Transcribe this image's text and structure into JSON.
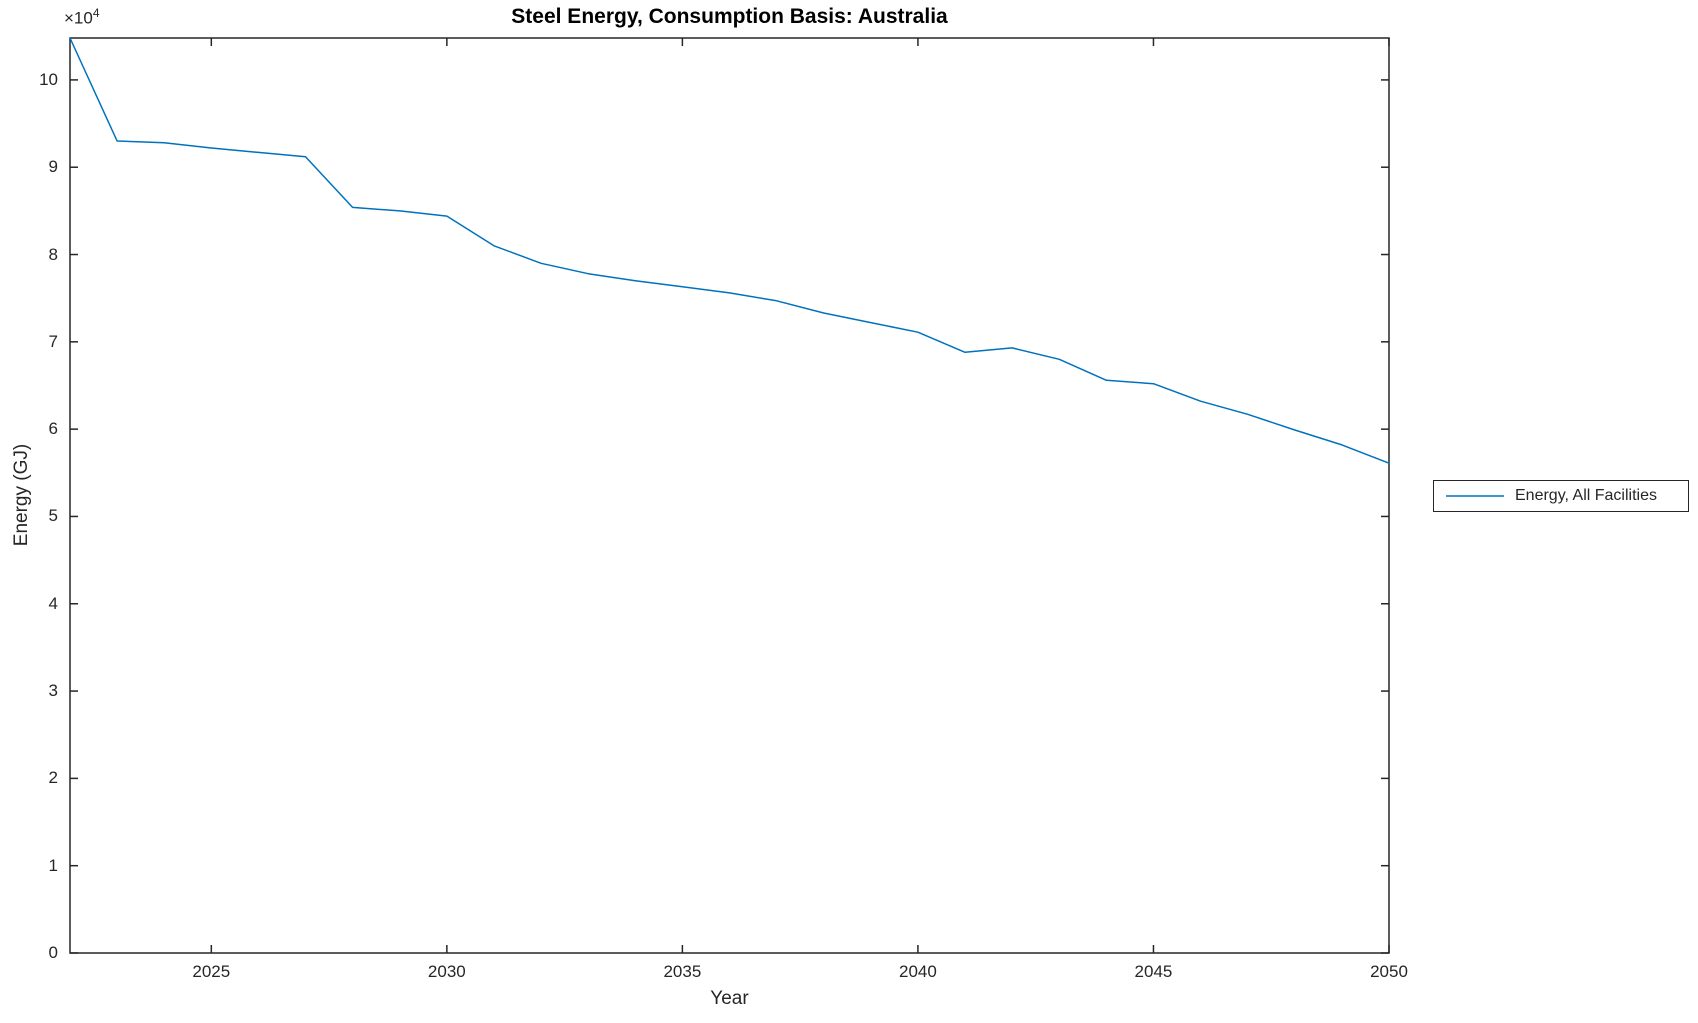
{
  "figure": {
    "background": "#ffffff"
  },
  "chart_data": {
    "type": "line",
    "title": "Steel Energy, Consumption Basis: Australia",
    "xlabel": "Year",
    "ylabel": "Energy (GJ)",
    "y_multiplier_label": "×10",
    "y_multiplier_exponent": "4",
    "y_multiplier_value": 10000,
    "x": [
      2022,
      2023,
      2024,
      2025,
      2026,
      2027,
      2028,
      2029,
      2030,
      2031,
      2032,
      2033,
      2034,
      2035,
      2036,
      2037,
      2038,
      2039,
      2040,
      2041,
      2042,
      2043,
      2044,
      2045,
      2046,
      2047,
      2048,
      2049,
      2050
    ],
    "series": [
      {
        "name": "Energy, All Facilities",
        "color": "#0072BD",
        "values_x1e4_GJ": [
          10.48,
          9.3,
          9.28,
          9.22,
          9.17,
          9.12,
          8.54,
          8.5,
          8.44,
          8.1,
          7.9,
          7.78,
          7.7,
          7.63,
          7.56,
          7.47,
          7.33,
          7.22,
          7.11,
          6.88,
          6.93,
          6.8,
          6.56,
          6.52,
          6.32,
          6.17,
          5.99,
          5.82,
          5.61
        ]
      }
    ],
    "xlim": [
      2022,
      2050
    ],
    "ylim": [
      0,
      10.48
    ],
    "xticks": [
      2025,
      2030,
      2035,
      2040,
      2045,
      2050
    ],
    "yticks": [
      0,
      1,
      2,
      3,
      4,
      5,
      6,
      7,
      8,
      9,
      10
    ],
    "grid": false,
    "legend": {
      "position": "east-outside",
      "entries": [
        "Energy, All Facilities"
      ]
    }
  },
  "colors": {
    "axis": "#262626",
    "tick_text": "#262626",
    "title_text": "#000000",
    "line": "#0072BD"
  }
}
